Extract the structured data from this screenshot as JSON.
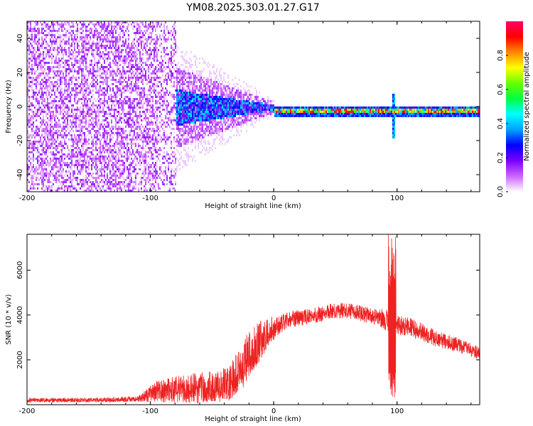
{
  "title": "YM08.2025.303.01.27.G17",
  "chart_data": [
    {
      "type": "heatmap",
      "xlabel": "Height of straight line (km)",
      "ylabel": "Frequency (Hz)",
      "xlim": [
        -200,
        167
      ],
      "ylim": [
        -50,
        50
      ],
      "xticks": [
        -200,
        -100,
        0,
        100
      ],
      "xtick_labels": [
        "-200",
        "-100",
        "0",
        "100"
      ],
      "yticks": [
        -40,
        -20,
        0,
        20,
        40
      ],
      "ytick_labels": [
        "-40",
        "-20",
        "0",
        "20",
        "40"
      ],
      "colorbar": {
        "label": "Normalized spectral amplitude",
        "range": [
          0,
          1
        ],
        "ticks": [
          0.0,
          0.2,
          0.4,
          0.6,
          0.8
        ],
        "tick_labels": [
          "0.0",
          "0.2",
          "0.4",
          "0.6",
          "0.8"
        ],
        "colors": [
          "#ffffff",
          "#cc66ff",
          "#7a00ff",
          "#0000ff",
          "#00a0ff",
          "#00ffff",
          "#00ff44",
          "#66ff00",
          "#ffff00",
          "#ff8800",
          "#ff0000",
          "#ff0066"
        ]
      },
      "features": [
        {
          "name": "broadband noise",
          "x_range": [
            -200,
            -80
          ],
          "freq_range": [
            -50,
            50
          ],
          "amplitude": 0.05
        },
        {
          "name": "transition cone",
          "x_range": [
            -85,
            0
          ],
          "freq_halfwidth_start": 25,
          "freq_halfwidth_end": 3,
          "amplitude": 0.3
        },
        {
          "name": "signal tone",
          "x_range": [
            0,
            167
          ],
          "freq": -2,
          "amplitude": 0.75
        },
        {
          "name": "spike",
          "x": 97,
          "freq_range": [
            -18,
            8
          ]
        }
      ]
    },
    {
      "type": "line",
      "xlabel": "Height of straight line (km)",
      "ylabel": "SNR (10 * v/v)",
      "xlim": [
        -200,
        167
      ],
      "ylim": [
        0,
        7600
      ],
      "xticks": [
        -200,
        -100,
        0,
        100
      ],
      "xtick_labels": [
        "-200",
        "-100",
        "0",
        "100"
      ],
      "yticks": [
        2000,
        4000,
        6000
      ],
      "ytick_labels": [
        "2000",
        "4000",
        "6000"
      ],
      "color": "#ee2222",
      "series": [
        {
          "name": "SNR",
          "x": [
            -200,
            -150,
            -110,
            -95,
            -80,
            -60,
            -45,
            -35,
            -25,
            -15,
            -5,
            5,
            15,
            25,
            35,
            45,
            55,
            65,
            75,
            85,
            90,
            95,
            100,
            110,
            120,
            130,
            140,
            150,
            160,
            167
          ],
          "values": [
            200,
            200,
            250,
            600,
            700,
            750,
            800,
            1000,
            1800,
            2600,
            3200,
            3600,
            3800,
            3900,
            4000,
            4150,
            4200,
            4150,
            4000,
            3900,
            3800,
            3700,
            3600,
            3450,
            3250,
            3000,
            2800,
            2650,
            2450,
            2300
          ],
          "noise_amplitude": [
            100,
            100,
            120,
            500,
            600,
            700,
            700,
            800,
            1100,
            1000,
            700,
            400,
            400,
            350,
            350,
            350,
            350,
            350,
            350,
            350,
            500,
            500,
            450,
            450,
            400,
            380,
            350,
            320,
            300,
            300
          ],
          "spike": {
            "x": 96,
            "max": 7700,
            "min": 250
          }
        }
      ]
    }
  ]
}
